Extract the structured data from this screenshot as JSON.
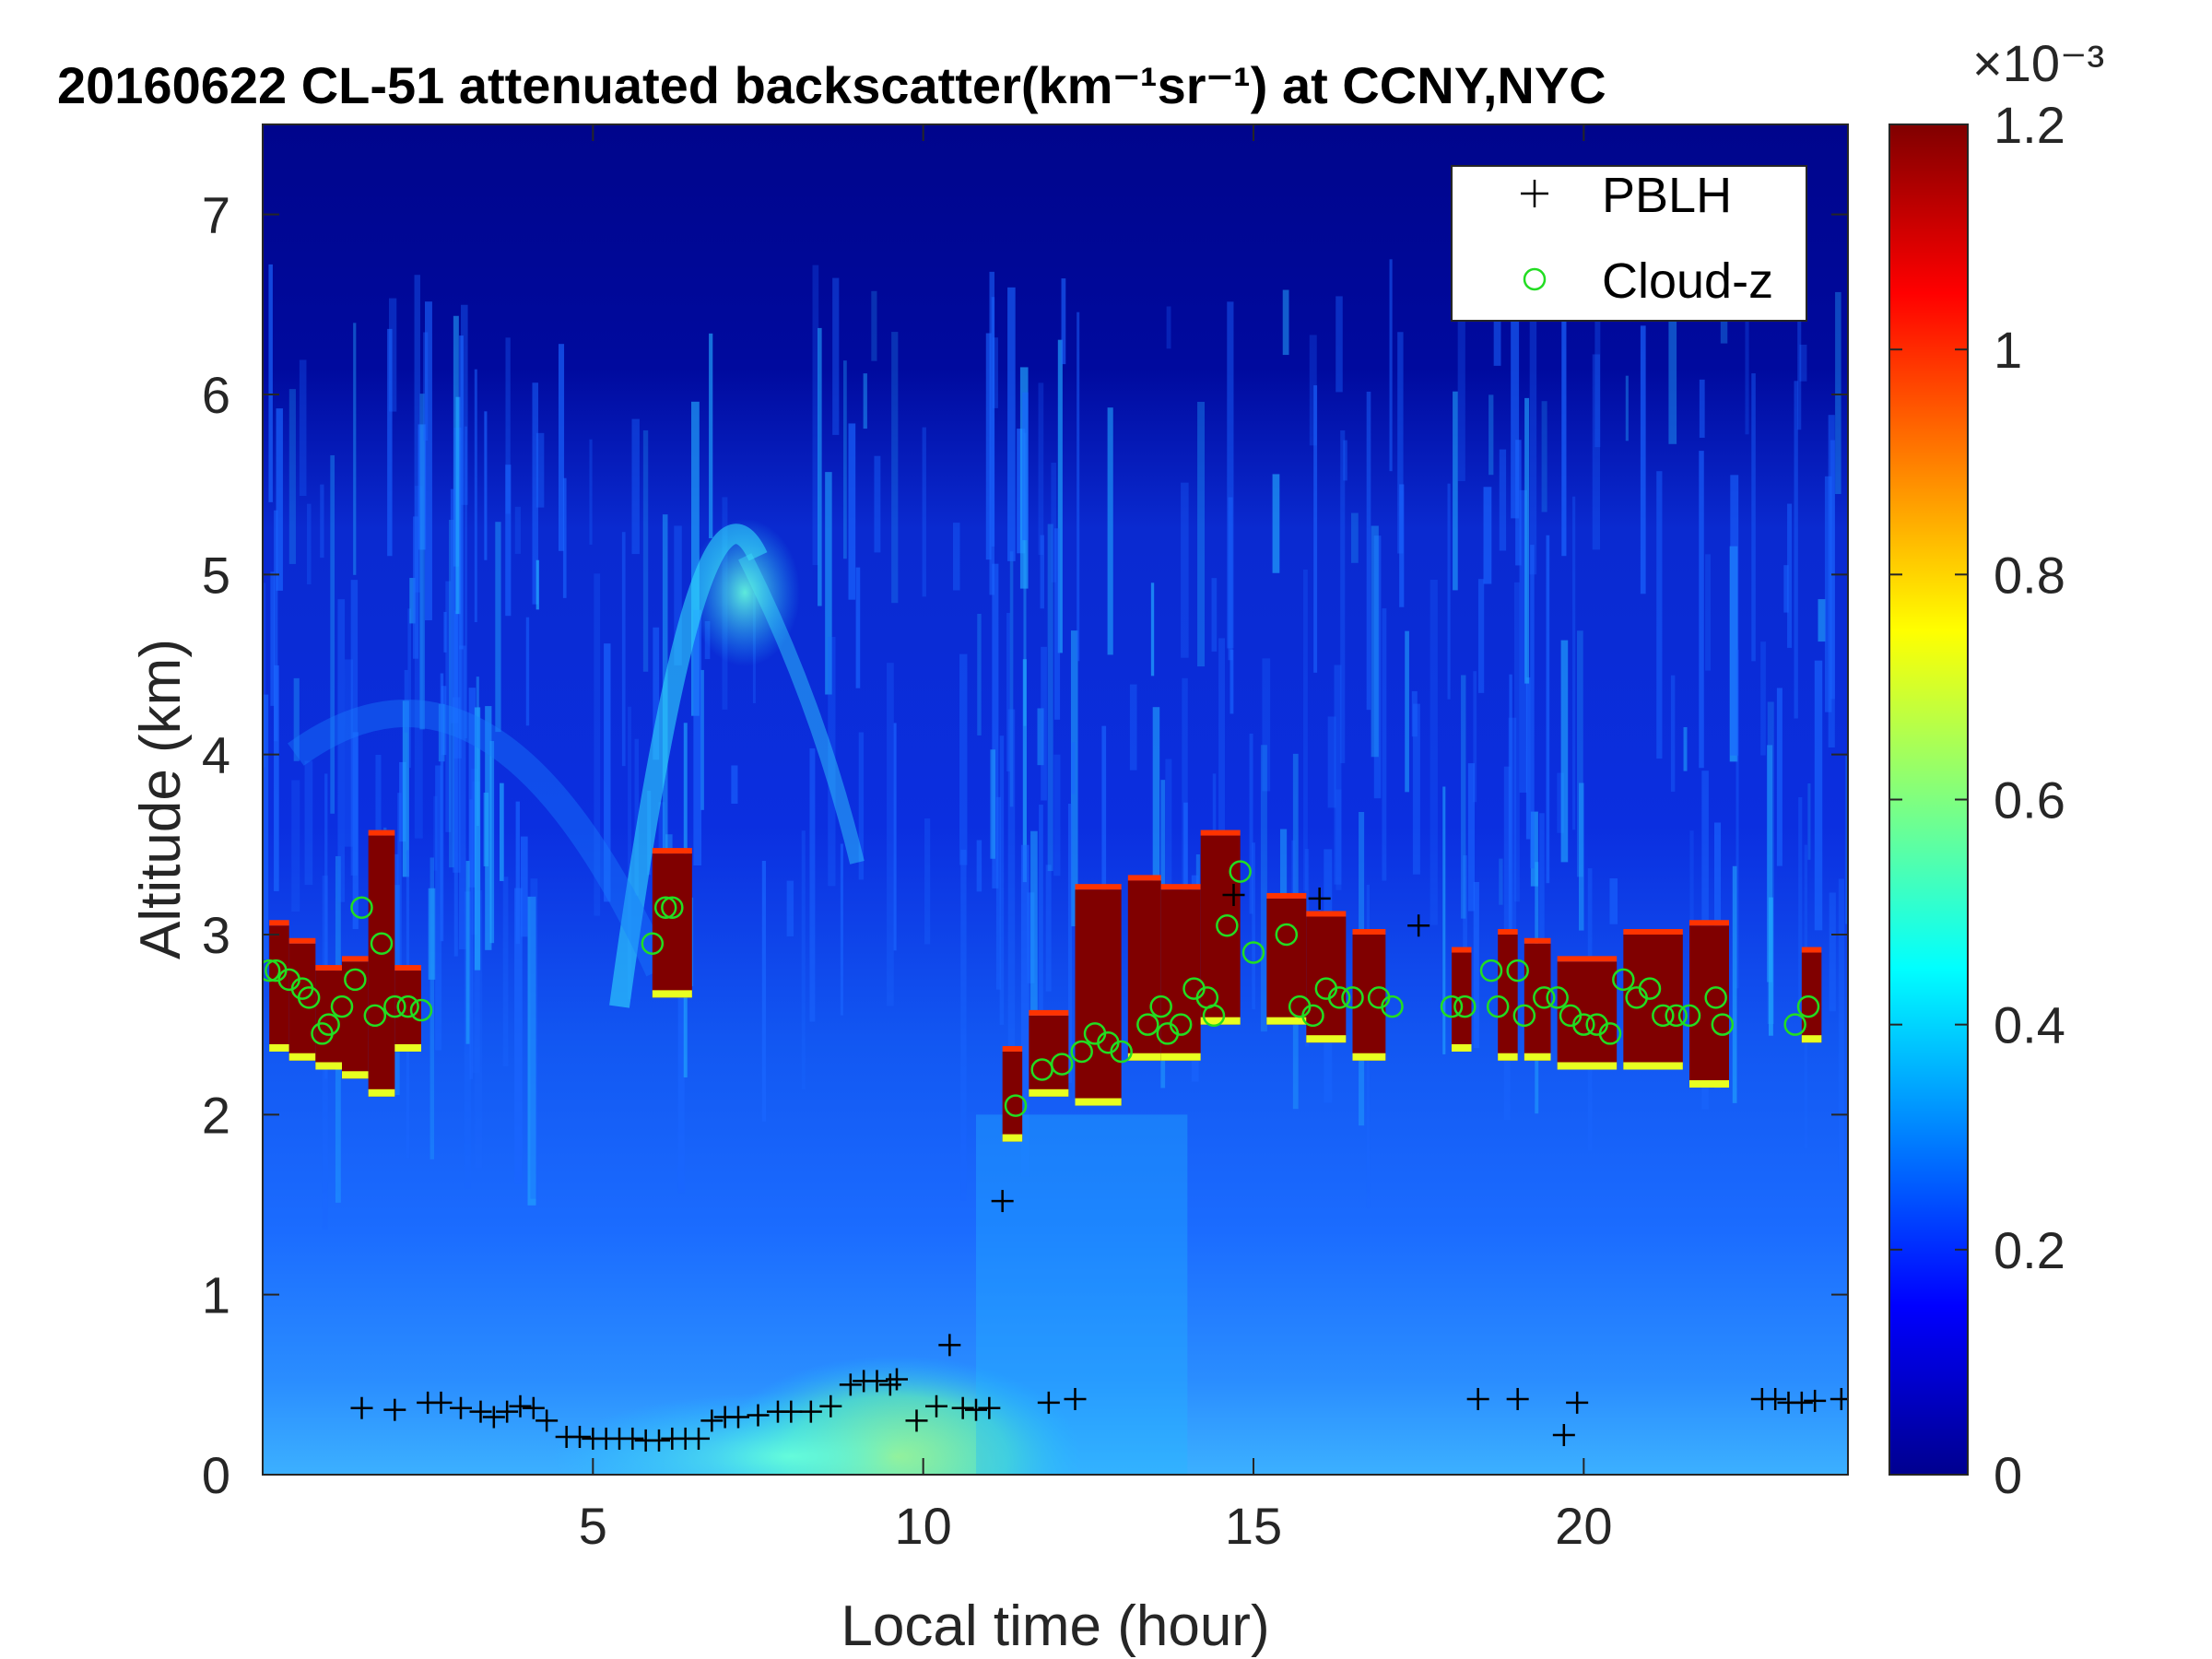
{
  "chart_data": {
    "type": "heatmap",
    "title": "20160622  CL-51 attenuated backscatter(km⁻¹sr⁻¹) at CCNY,NYC",
    "xlabel": "Local time (hour)",
    "ylabel": "Altitude (km)",
    "xlim": [
      0,
      24
    ],
    "ylim": [
      0,
      7.5
    ],
    "xticks": [
      5,
      10,
      15,
      20
    ],
    "yticks": [
      0,
      1,
      2,
      3,
      4,
      5,
      6,
      7
    ],
    "colorbar": {
      "range": [
        0,
        0.0012
      ],
      "ticks": [
        0,
        0.2,
        0.4,
        0.6,
        0.8,
        1,
        1.2
      ],
      "multiplier": "×10⁻³",
      "colormap": "jet"
    },
    "legend": {
      "position": "top-right",
      "entries": [
        {
          "label": "PBLH",
          "marker": "+",
          "color": "#000000"
        },
        {
          "label": "Cloud-z",
          "marker": "o",
          "color": "#22dd22"
        }
      ]
    },
    "cloud_layer": [
      {
        "x0": 0.1,
        "x1": 0.4,
        "bottom": 2.35,
        "top": 3.05
      },
      {
        "x0": 0.4,
        "x1": 0.8,
        "bottom": 2.3,
        "top": 2.95
      },
      {
        "x0": 0.8,
        "x1": 1.2,
        "bottom": 2.25,
        "top": 2.8
      },
      {
        "x0": 1.2,
        "x1": 1.6,
        "bottom": 2.2,
        "top": 2.85
      },
      {
        "x0": 1.6,
        "x1": 2.0,
        "bottom": 2.1,
        "top": 3.55
      },
      {
        "x0": 2.0,
        "x1": 2.4,
        "bottom": 2.35,
        "top": 2.8
      },
      {
        "x0": 5.9,
        "x1": 6.5,
        "bottom": 2.65,
        "top": 3.45
      },
      {
        "x0": 11.2,
        "x1": 11.5,
        "bottom": 1.85,
        "top": 2.35
      },
      {
        "x0": 11.6,
        "x1": 12.2,
        "bottom": 2.1,
        "top": 2.55
      },
      {
        "x0": 12.3,
        "x1": 13.0,
        "bottom": 2.05,
        "top": 3.25
      },
      {
        "x0": 13.1,
        "x1": 13.6,
        "bottom": 2.3,
        "top": 3.3
      },
      {
        "x0": 13.6,
        "x1": 14.2,
        "bottom": 2.3,
        "top": 3.25
      },
      {
        "x0": 14.2,
        "x1": 14.8,
        "bottom": 2.5,
        "top": 3.55
      },
      {
        "x0": 15.2,
        "x1": 15.8,
        "bottom": 2.5,
        "top": 3.2
      },
      {
        "x0": 15.8,
        "x1": 16.4,
        "bottom": 2.4,
        "top": 3.1
      },
      {
        "x0": 16.5,
        "x1": 17.0,
        "bottom": 2.3,
        "top": 3.0
      },
      {
        "x0": 18.0,
        "x1": 18.3,
        "bottom": 2.35,
        "top": 2.9
      },
      {
        "x0": 18.7,
        "x1": 19.0,
        "bottom": 2.3,
        "top": 3.0
      },
      {
        "x0": 19.1,
        "x1": 19.5,
        "bottom": 2.3,
        "top": 2.95
      },
      {
        "x0": 19.6,
        "x1": 20.5,
        "bottom": 2.25,
        "top": 2.85
      },
      {
        "x0": 20.6,
        "x1": 21.5,
        "bottom": 2.25,
        "top": 3.0
      },
      {
        "x0": 21.6,
        "x1": 22.2,
        "bottom": 2.15,
        "top": 3.05
      },
      {
        "x0": 23.3,
        "x1": 23.6,
        "bottom": 2.4,
        "top": 2.9
      }
    ],
    "pblh": {
      "x": [
        1.5,
        2.0,
        2.5,
        2.7,
        3.0,
        3.3,
        3.5,
        3.7,
        3.9,
        4.1,
        4.3,
        4.6,
        4.8,
        5.0,
        5.2,
        5.4,
        5.6,
        5.8,
        6.0,
        6.2,
        6.4,
        6.6,
        6.8,
        7.0,
        7.2,
        7.5,
        7.8,
        8.0,
        8.3,
        8.6,
        8.9,
        9.1,
        9.3,
        9.5,
        9.6,
        9.9,
        10.2,
        10.4,
        10.6,
        10.8,
        11.0,
        11.2,
        11.9,
        12.3,
        14.7,
        16.0,
        17.5,
        18.4,
        19.0,
        19.7,
        19.9,
        22.7,
        22.9,
        23.1,
        23.3,
        23.5,
        23.9
      ],
      "y": [
        0.37,
        0.36,
        0.4,
        0.4,
        0.37,
        0.35,
        0.32,
        0.35,
        0.38,
        0.37,
        0.3,
        0.21,
        0.21,
        0.2,
        0.2,
        0.2,
        0.2,
        0.19,
        0.19,
        0.2,
        0.2,
        0.2,
        0.3,
        0.32,
        0.32,
        0.33,
        0.35,
        0.35,
        0.35,
        0.38,
        0.5,
        0.52,
        0.52,
        0.5,
        0.53,
        0.3,
        0.38,
        0.72,
        0.37,
        0.36,
        0.37,
        1.52,
        0.4,
        0.42,
        3.22,
        3.2,
        3.05,
        0.42,
        0.42,
        0.22,
        0.4,
        0.42,
        0.42,
        0.4,
        0.4,
        0.41,
        0.42
      ]
    },
    "cloud_z": {
      "x": [
        0.1,
        0.2,
        0.4,
        0.6,
        0.7,
        0.9,
        1.0,
        1.2,
        1.4,
        1.5,
        1.7,
        1.8,
        2.0,
        2.2,
        2.4,
        5.9,
        6.1,
        6.2,
        11.4,
        11.8,
        12.1,
        12.4,
        12.6,
        12.8,
        13.0,
        13.4,
        13.6,
        13.7,
        13.9,
        14.1,
        14.3,
        14.4,
        14.6,
        14.8,
        15.0,
        15.5,
        15.7,
        15.9,
        16.1,
        16.3,
        16.5,
        16.9,
        17.1,
        18.0,
        18.2,
        18.6,
        18.7,
        19.0,
        19.1,
        19.4,
        19.6,
        19.8,
        20.0,
        20.2,
        20.4,
        20.6,
        20.8,
        21.0,
        21.2,
        21.4,
        21.6,
        22.0,
        22.1,
        23.2,
        23.4
      ],
      "y": [
        2.8,
        2.8,
        2.75,
        2.7,
        2.65,
        2.45,
        2.5,
        2.6,
        2.75,
        3.15,
        2.55,
        2.95,
        2.6,
        2.6,
        2.58,
        2.95,
        3.15,
        3.15,
        2.05,
        2.25,
        2.28,
        2.35,
        2.45,
        2.4,
        2.35,
        2.5,
        2.6,
        2.45,
        2.5,
        2.7,
        2.65,
        2.55,
        3.05,
        3.35,
        2.9,
        3.0,
        2.6,
        2.55,
        2.7,
        2.65,
        2.65,
        2.65,
        2.6,
        2.6,
        2.6,
        2.8,
        2.6,
        2.8,
        2.55,
        2.65,
        2.65,
        2.55,
        2.5,
        2.5,
        2.45,
        2.75,
        2.65,
        2.7,
        2.55,
        2.55,
        2.55,
        2.65,
        2.5,
        2.5,
        2.6
      ]
    }
  }
}
